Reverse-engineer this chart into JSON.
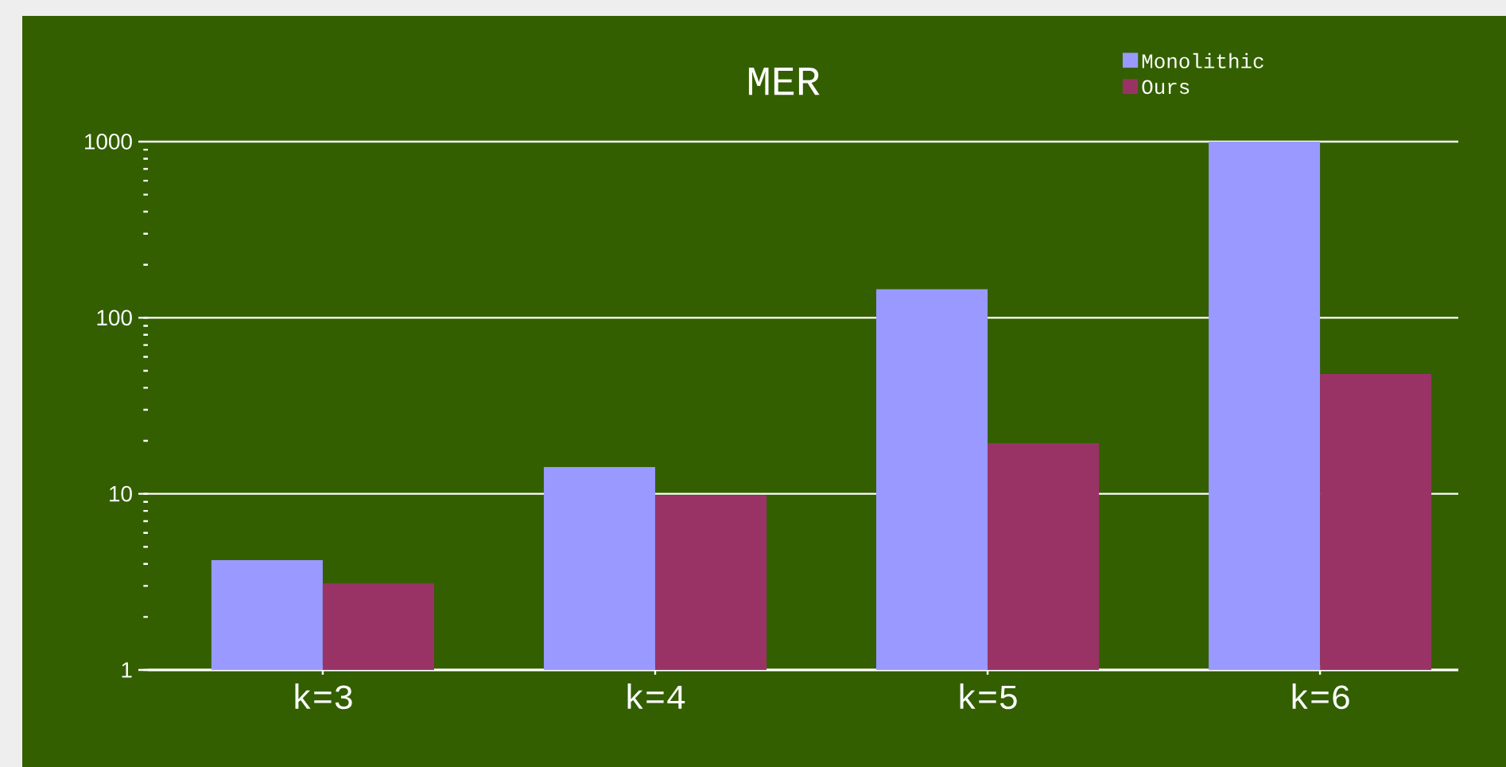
{
  "chart_data": {
    "type": "bar",
    "title": "MER",
    "categories": [
      "k=3",
      "k=4",
      "k=5",
      "k=6"
    ],
    "series": [
      {
        "name": "Monolithic",
        "color": "#9999ff",
        "values": [
          4.2,
          14.2,
          145,
          1000
        ]
      },
      {
        "name": "Ours",
        "color": "#993366",
        "values": [
          3.1,
          9.8,
          19.4,
          48
        ]
      }
    ],
    "log": true,
    "ylim": [
      1,
      1000
    ],
    "yticks": [
      1,
      10,
      100,
      1000
    ],
    "grid": "y",
    "legend": "top right"
  }
}
